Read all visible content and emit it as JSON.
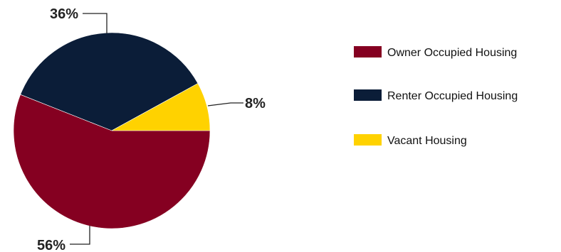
{
  "chart_data": {
    "type": "pie",
    "title": "",
    "slices": [
      {
        "label": "Owner Occupied Housing",
        "value": 56,
        "display": "56%",
        "color": "#850021"
      },
      {
        "label": "Renter Occupied Housing",
        "value": 36,
        "display": "36%",
        "color": "#0b1d38"
      },
      {
        "label": "Vacant Housing",
        "value": 8,
        "display": "8%",
        "color": "#ffd200"
      }
    ],
    "legend_position": "right",
    "grid": false
  }
}
